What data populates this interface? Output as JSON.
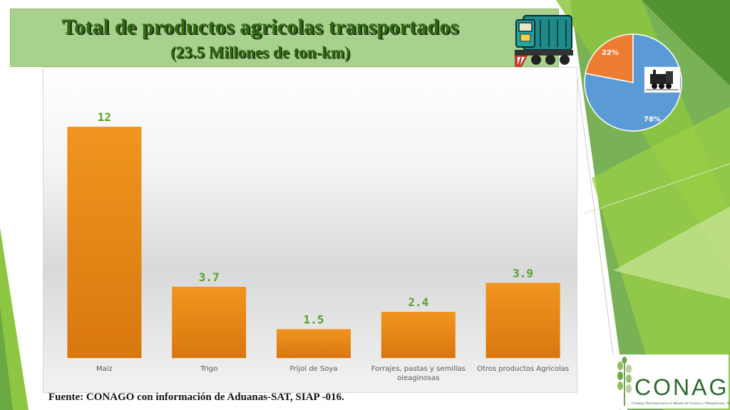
{
  "header": {
    "title_line1": "Total de productos agricolas transportados",
    "title_line2": "(23.5 Millones de ton-km)"
  },
  "chart_data": [
    {
      "type": "bar",
      "categories": [
        "Maiz",
        "Trigo",
        "Frijol de Soya",
        "Forrajes, pastas y semillas oleaginosas",
        "Otros productos Agricolas"
      ],
      "values": [
        12,
        3.7,
        1.5,
        2.4,
        3.9
      ],
      "value_labels": [
        "12",
        "3.7",
        "1.5",
        "2.4",
        "3.9"
      ],
      "ylim": [
        0,
        13
      ],
      "grid": false,
      "bar_color": "#e8891a",
      "label_color": "#5aa02c"
    },
    {
      "type": "pie",
      "slices": [
        {
          "value": 78,
          "label": "78%",
          "color": "#5b9bd5"
        },
        {
          "value": 22,
          "label": "22%",
          "color": "#ed7d31"
        }
      ],
      "icon": "train-icon"
    }
  ],
  "footer": {
    "source": "Fuente: CONAGO con información de Aduanas-SAT, SIAP -016."
  },
  "logo": {
    "name": "CONAGO",
    "subtitle": "Consejo Nacional para el Abasto de Granos y Oleaginosas, A.C."
  }
}
